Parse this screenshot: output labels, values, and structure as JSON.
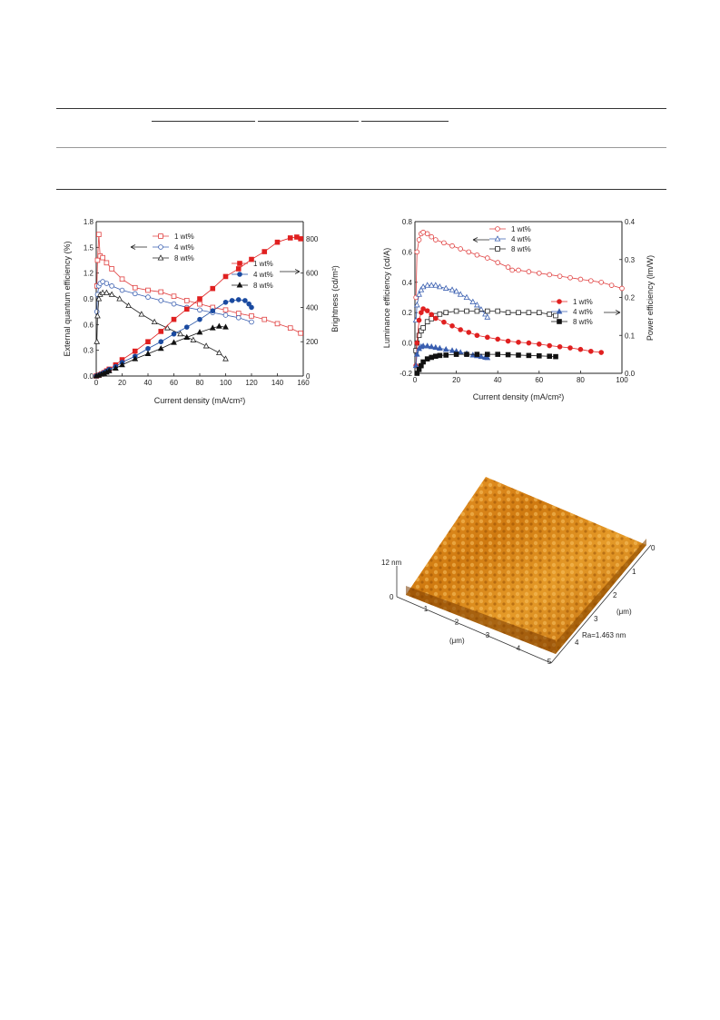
{
  "chart_data": [
    {
      "type": "line",
      "xlabel": "Current density (mA/cm²)",
      "ylabel": "External quantum efficiency (%)",
      "y2label": "Brightness (cd/m²)",
      "xlim": [
        0,
        160
      ],
      "ylim": [
        0,
        1.8
      ],
      "y2lim": [
        0,
        900
      ],
      "xticks": [
        "0",
        "20",
        "40",
        "60",
        "80",
        "100",
        "120",
        "140",
        "160"
      ],
      "yticks": [
        "0.0",
        "0.3",
        "0.6",
        "0.9",
        "1.2",
        "1.5",
        "1.8"
      ],
      "y2ticks": [
        "0",
        "200",
        "400",
        "600",
        "800"
      ],
      "legend_left": [
        "1 wt%",
        "4 wt%",
        "8 wt%"
      ],
      "legend_right": [
        "1 wt%",
        "4 wt%",
        "8 wt%"
      ],
      "series": [
        {
          "name": "1 wt%",
          "axis": "left",
          "marker": "open-square",
          "color": "#e04040",
          "x": [
            0.5,
            1,
            2,
            3,
            5,
            8,
            12,
            20,
            30,
            40,
            50,
            60,
            70,
            80,
            90,
            100,
            110,
            120,
            130,
            140,
            150,
            158
          ],
          "y": [
            1.05,
            1.35,
            1.65,
            1.4,
            1.38,
            1.32,
            1.25,
            1.13,
            1.03,
            1.0,
            0.98,
            0.93,
            0.88,
            0.84,
            0.8,
            0.77,
            0.73,
            0.7,
            0.66,
            0.61,
            0.56,
            0.5
          ]
        },
        {
          "name": "4 wt%",
          "axis": "left",
          "marker": "open-circle",
          "color": "#3a5fb0",
          "x": [
            0.5,
            1,
            2,
            3,
            5,
            8,
            12,
            20,
            30,
            40,
            50,
            60,
            70,
            80,
            90,
            100,
            110,
            120
          ],
          "y": [
            0.75,
            0.95,
            1.05,
            1.08,
            1.1,
            1.08,
            1.05,
            1.0,
            0.96,
            0.92,
            0.88,
            0.84,
            0.8,
            0.77,
            0.74,
            0.71,
            0.68,
            0.63
          ]
        },
        {
          "name": "8 wt%",
          "axis": "left",
          "marker": "open-triangle",
          "color": "#222222",
          "x": [
            0.5,
            1,
            2,
            3,
            5,
            8,
            12,
            18,
            25,
            35,
            45,
            55,
            65,
            75,
            85,
            95,
            100
          ],
          "y": [
            0.4,
            0.7,
            0.9,
            0.95,
            0.97,
            0.97,
            0.95,
            0.9,
            0.82,
            0.72,
            0.63,
            0.56,
            0.49,
            0.42,
            0.35,
            0.27,
            0.2
          ]
        },
        {
          "name": "1 wt%",
          "axis": "right",
          "marker": "filled-square",
          "color": "#e02020",
          "x": [
            0,
            2,
            4,
            6,
            8,
            10,
            15,
            20,
            30,
            40,
            50,
            60,
            70,
            80,
            90,
            100,
            110,
            120,
            130,
            140,
            150,
            155,
            158
          ],
          "y": [
            0,
            5,
            12,
            20,
            30,
            40,
            65,
            95,
            145,
            200,
            260,
            330,
            390,
            450,
            510,
            580,
            625,
            680,
            725,
            780,
            805,
            810,
            800
          ]
        },
        {
          "name": "4 wt%",
          "axis": "right",
          "marker": "filled-circle",
          "color": "#1a4aa0",
          "x": [
            0,
            2,
            4,
            6,
            8,
            10,
            15,
            20,
            30,
            40,
            50,
            60,
            70,
            80,
            90,
            100,
            105,
            110,
            115,
            118,
            120
          ],
          "y": [
            0,
            5,
            12,
            20,
            28,
            38,
            55,
            80,
            115,
            160,
            200,
            245,
            285,
            330,
            380,
            430,
            440,
            445,
            440,
            420,
            400
          ]
        },
        {
          "name": "8 wt%",
          "axis": "right",
          "marker": "filled-triangle",
          "color": "#111111",
          "x": [
            0,
            2,
            4,
            6,
            8,
            10,
            15,
            20,
            30,
            40,
            50,
            60,
            70,
            80,
            90,
            95,
            100
          ],
          "y": [
            0,
            4,
            10,
            16,
            22,
            30,
            45,
            65,
            100,
            130,
            160,
            195,
            225,
            255,
            280,
            290,
            285
          ]
        }
      ]
    },
    {
      "type": "line",
      "xlabel": "Current density (mA/cm²)",
      "ylabel": "Luminance efficiency (cd/A)",
      "y2label": "Power efficiency (lm/W)",
      "xlim": [
        0,
        100
      ],
      "ylim": [
        -0.2,
        0.8
      ],
      "y2lim": [
        0,
        0.4
      ],
      "xticks": [
        "0",
        "20",
        "40",
        "60",
        "80",
        "100"
      ],
      "yticks": [
        "-0.2",
        "0.0",
        "0.2",
        "0.4",
        "0.6",
        "0.8"
      ],
      "y2ticks": [
        "0.0",
        "0.1",
        "0.2",
        "0.3",
        "0.4"
      ],
      "legend_left": [
        "1 wt%",
        "4 wt%",
        "8 wt%"
      ],
      "legend_right": [
        "1 wt%",
        "4 wt%",
        "8 wt%"
      ],
      "series": [
        {
          "name": "1 wt%",
          "axis": "left",
          "marker": "open-circle",
          "color": "#e04040",
          "x": [
            0.5,
            1,
            2,
            3,
            4,
            6,
            8,
            10,
            14,
            18,
            22,
            26,
            30,
            35,
            40,
            45,
            47,
            50,
            55,
            60,
            65,
            70,
            75,
            80,
            85,
            90,
            95,
            100
          ],
          "y": [
            0.3,
            0.6,
            0.68,
            0.72,
            0.73,
            0.72,
            0.7,
            0.68,
            0.66,
            0.64,
            0.62,
            0.6,
            0.58,
            0.56,
            0.53,
            0.5,
            0.48,
            0.48,
            0.47,
            0.46,
            0.45,
            0.44,
            0.43,
            0.42,
            0.41,
            0.4,
            0.38,
            0.36
          ]
        },
        {
          "name": "4 wt%",
          "axis": "left",
          "marker": "open-triangle",
          "color": "#3a5fb0",
          "x": [
            0.5,
            1,
            2,
            3,
            4,
            6,
            8,
            10,
            12,
            15,
            18,
            20,
            22,
            25,
            28,
            30,
            32,
            34,
            35
          ],
          "y": [
            0.15,
            0.25,
            0.32,
            0.35,
            0.37,
            0.38,
            0.38,
            0.38,
            0.37,
            0.36,
            0.35,
            0.34,
            0.32,
            0.3,
            0.27,
            0.25,
            0.22,
            0.19,
            0.17
          ]
        },
        {
          "name": "8 wt%",
          "axis": "left",
          "marker": "open-square",
          "color": "#222222",
          "x": [
            0.5,
            1,
            2,
            3,
            4,
            6,
            8,
            10,
            12,
            15,
            20,
            25,
            30,
            35,
            40,
            45,
            50,
            55,
            60,
            65,
            68
          ],
          "y": [
            -0.05,
            0.0,
            0.05,
            0.08,
            0.1,
            0.14,
            0.16,
            0.18,
            0.19,
            0.2,
            0.21,
            0.21,
            0.21,
            0.21,
            0.21,
            0.2,
            0.2,
            0.2,
            0.2,
            0.19,
            0.18
          ]
        },
        {
          "name": "1 wt%",
          "axis": "right",
          "marker": "filled-circle",
          "color": "#e02020",
          "x": [
            0.5,
            1,
            2,
            3,
            4,
            6,
            8,
            10,
            14,
            18,
            22,
            26,
            30,
            35,
            40,
            45,
            50,
            55,
            60,
            65,
            70,
            75,
            80,
            85,
            90
          ],
          "y": [
            0.02,
            0.08,
            0.14,
            0.16,
            0.17,
            0.165,
            0.155,
            0.145,
            0.135,
            0.125,
            0.115,
            0.108,
            0.1,
            0.095,
            0.09,
            0.085,
            0.082,
            0.08,
            0.077,
            0.073,
            0.07,
            0.067,
            0.063,
            0.058,
            0.055
          ]
        },
        {
          "name": "4 wt%",
          "axis": "right",
          "marker": "filled-triangle",
          "color": "#3a5fb0",
          "x": [
            0.5,
            1,
            2,
            3,
            4,
            6,
            8,
            10,
            12,
            15,
            18,
            20,
            22,
            25,
            28,
            30,
            32,
            34,
            35
          ],
          "y": [
            0.02,
            0.05,
            0.065,
            0.07,
            0.072,
            0.072,
            0.07,
            0.068,
            0.066,
            0.063,
            0.06,
            0.058,
            0.055,
            0.052,
            0.048,
            0.046,
            0.044,
            0.042,
            0.041
          ]
        },
        {
          "name": "8 wt%",
          "axis": "right",
          "marker": "filled-square",
          "color": "#111111",
          "x": [
            1,
            2,
            3,
            4,
            6,
            8,
            10,
            12,
            15,
            20,
            25,
            30,
            35,
            40,
            45,
            50,
            55,
            60,
            65,
            68
          ],
          "y": [
            0.0,
            0.01,
            0.02,
            0.03,
            0.038,
            0.042,
            0.045,
            0.047,
            0.048,
            0.05,
            0.05,
            0.05,
            0.05,
            0.05,
            0.049,
            0.048,
            0.047,
            0.046,
            0.045,
            0.044
          ]
        }
      ]
    }
  ],
  "afm": {
    "z_max": "12 nm",
    "z_min": "0",
    "x_ticks": [
      "1",
      "2",
      "3",
      "4",
      "5"
    ],
    "x_label": "(μm)",
    "y_ticks": [
      "0",
      "1",
      "2",
      "3",
      "4"
    ],
    "y_label": "(μm)",
    "roughness": "Ra=1.463 nm"
  }
}
